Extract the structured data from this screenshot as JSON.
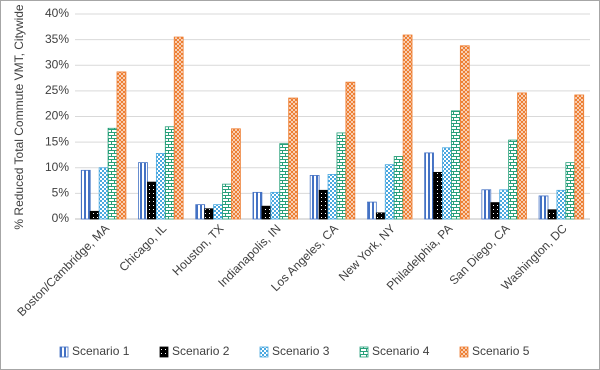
{
  "chart_data": {
    "type": "bar",
    "y_label": "% Reduced Total Commute VMT, Citywide",
    "categories": [
      "Boston/Cambridge, MA",
      "Chicago, IL",
      "Houston, TX",
      "Indianapolis, IN",
      "Los Angeles, CA",
      "New York, NY",
      "Philadelphia, PA",
      "San Diego, CA",
      "Washington, DC"
    ],
    "series": [
      {
        "name": "Scenario 1",
        "color": "#4472c4",
        "values": [
          9.5,
          11,
          2.8,
          5.2,
          8.5,
          3.3,
          12.9,
          5.7,
          4.5
        ]
      },
      {
        "name": "Scenario 2",
        "color": "#000000",
        "values": [
          1.5,
          7.2,
          2,
          2.5,
          5.6,
          1.2,
          9.1,
          3.2,
          1.8
        ]
      },
      {
        "name": "Scenario 3",
        "color": "#4aa8e0",
        "values": [
          10,
          12.8,
          2.8,
          5.2,
          8.7,
          10.6,
          13.9,
          5.7,
          5.6
        ]
      },
      {
        "name": "Scenario 4",
        "color": "#27a07a",
        "values": [
          17.7,
          18,
          6.8,
          14.7,
          16.8,
          12.2,
          21.1,
          15.4,
          11
        ]
      },
      {
        "name": "Scenario 5",
        "color": "#ed7d31",
        "values": [
          28.7,
          35.5,
          17.6,
          23.6,
          26.7,
          35.9,
          33.8,
          24.6,
          24.2
        ]
      }
    ],
    "ylim": [
      0,
      40
    ],
    "yticks": [
      {
        "value": 0,
        "label": "0%"
      },
      {
        "value": 5,
        "label": "5%"
      },
      {
        "value": 10,
        "label": "10%"
      },
      {
        "value": 15,
        "label": "15%"
      },
      {
        "value": 20,
        "label": "20%"
      },
      {
        "value": 25,
        "label": "25%"
      },
      {
        "value": 30,
        "label": "30%"
      },
      {
        "value": 35,
        "label": "35%"
      },
      {
        "value": 40,
        "label": "40%"
      }
    ],
    "grid": true,
    "legend": "bottom"
  }
}
